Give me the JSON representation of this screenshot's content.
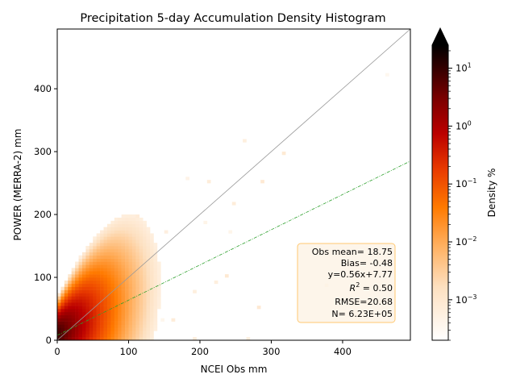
{
  "chart_data": {
    "type": "heatmap",
    "title": "Precipitation 5-day Accumulation Density Histogram",
    "xlabel": "NCEI Obs mm",
    "ylabel": "POWER (MERRA-2) mm",
    "xlim": [
      0,
      495
    ],
    "ylim": [
      0,
      495
    ],
    "x_ticks": [
      0,
      100,
      200,
      300,
      400
    ],
    "y_ticks": [
      0,
      100,
      200,
      300,
      400
    ],
    "grid": false,
    "colormap": "gist_heat_r",
    "colorbar": {
      "label": "Density %",
      "scale": "log",
      "range": [
        0.0002,
        25
      ],
      "extend": "max",
      "ticks": [
        {
          "value": 0.001,
          "base": "10",
          "exp": "−3"
        },
        {
          "value": 0.01,
          "base": "10",
          "exp": "−2"
        },
        {
          "value": 0.1,
          "base": "10",
          "exp": "−1"
        },
        {
          "value": 1,
          "base": "10",
          "exp": "0"
        },
        {
          "value": 10,
          "base": "10",
          "exp": "1"
        }
      ]
    },
    "density_model": {
      "regression": {
        "slope": 0.56,
        "intercept": 7.77
      },
      "bin_width_mm": 5
    },
    "lines": [
      {
        "type": "one-to-one",
        "color": "#999999"
      },
      {
        "type": "regression",
        "slope": 0.56,
        "intercept": 7.77,
        "color": "#2ca02c"
      }
    ],
    "stats_box": {
      "obs_mean": "Obs mean= 18.75",
      "bias": "Bias= -0.48",
      "fit": "y=0.56x+7.77",
      "r2_label": "R",
      "r2_sup": "2",
      "r2_value": " = 0.50",
      "rmse": "RMSE=20.68",
      "n": "N= 6.23E+05",
      "placement": "bottom-right"
    }
  }
}
